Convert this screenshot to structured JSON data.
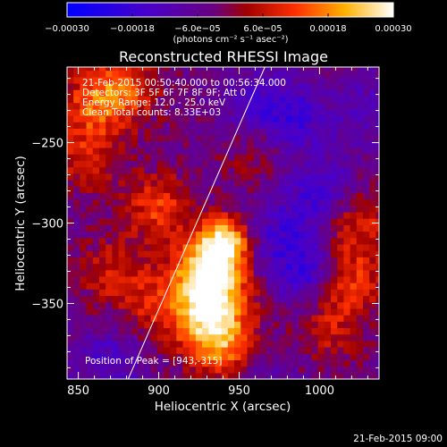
{
  "chart_data": {
    "type": "heatmap",
    "title": "Reconstructed RHESSI Image",
    "xlabel": "Heliocentric X (arcsec)",
    "ylabel": "Heliocentric Y (arcsec)",
    "xlim": [
      843,
      1037
    ],
    "ylim": [
      -397,
      -203
    ],
    "x_ticks": [
      850,
      900,
      950,
      1000
    ],
    "y_ticks": [
      -250,
      -300,
      -350
    ],
    "colorbar": {
      "min": -0.0003,
      "max": 0.0003,
      "tick_values": [
        -0.0003,
        -0.00018,
        -6e-05,
        6e-05,
        0.00018,
        0.0003
      ],
      "tick_labels": [
        "-0.00030",
        "-0.00018",
        "-6.0e-05",
        "6.0e-05",
        "0.00018",
        "0.00030"
      ],
      "label": "(photons cm⁻² s⁻¹ asec⁻²)",
      "colormap": "blue-purple-red-yellow-white"
    },
    "peak": {
      "x": 943,
      "y": -315,
      "label": "Position of Peak = [943,-315]"
    },
    "limb_line": [
      [
        881,
        -397
      ],
      [
        966,
        -203
      ]
    ],
    "emission_regions": [
      {
        "x": 941,
        "y": -312,
        "value": 0.0003
      },
      {
        "x": 928,
        "y": -330,
        "value": 0.00022
      },
      {
        "x": 935,
        "y": -345,
        "value": 0.0002
      },
      {
        "x": 930,
        "y": -365,
        "value": 0.00019
      },
      {
        "x": 945,
        "y": -380,
        "value": 0.00016
      },
      {
        "x": 900,
        "y": -290,
        "value": 0.00015
      },
      {
        "x": 860,
        "y": -225,
        "value": 0.00016
      },
      {
        "x": 880,
        "y": -215,
        "value": 0.00014
      },
      {
        "x": 855,
        "y": -260,
        "value": 0.00012
      },
      {
        "x": 870,
        "y": -330,
        "value": 0.0001
      },
      {
        "x": 895,
        "y": -350,
        "value": 0.00011
      },
      {
        "x": 1020,
        "y": -335,
        "value": 0.00014
      },
      {
        "x": 1025,
        "y": -300,
        "value": 0.00012
      },
      {
        "x": 1005,
        "y": -365,
        "value": 0.0001
      },
      {
        "x": 960,
        "y": -255,
        "value": 6e-05
      },
      {
        "x": 960,
        "y": -225,
        "value": -0.0001
      },
      {
        "x": 985,
        "y": -235,
        "value": -0.00012
      },
      {
        "x": 990,
        "y": -330,
        "value": -0.00014
      },
      {
        "x": 975,
        "y": -305,
        "value": -0.0001
      },
      {
        "x": 1000,
        "y": -280,
        "value": -0.00012
      },
      {
        "x": 1030,
        "y": -230,
        "value": -8e-05
      },
      {
        "x": 870,
        "y": -385,
        "value": -0.0001
      },
      {
        "x": 960,
        "y": -390,
        "value": -8e-05
      }
    ]
  },
  "info_lines": [
    "21-Feb-2015 00:50:40.000 to 00:56:34.000",
    "Detectors: 3F 5F 6F 7F 8F 9F; Att 0",
    "Energy Range: 12.0 - 25.0 keV",
    "Clean    Total counts: 8.33E+03"
  ],
  "footer_timestamp": "21-Feb-2015 09:00"
}
